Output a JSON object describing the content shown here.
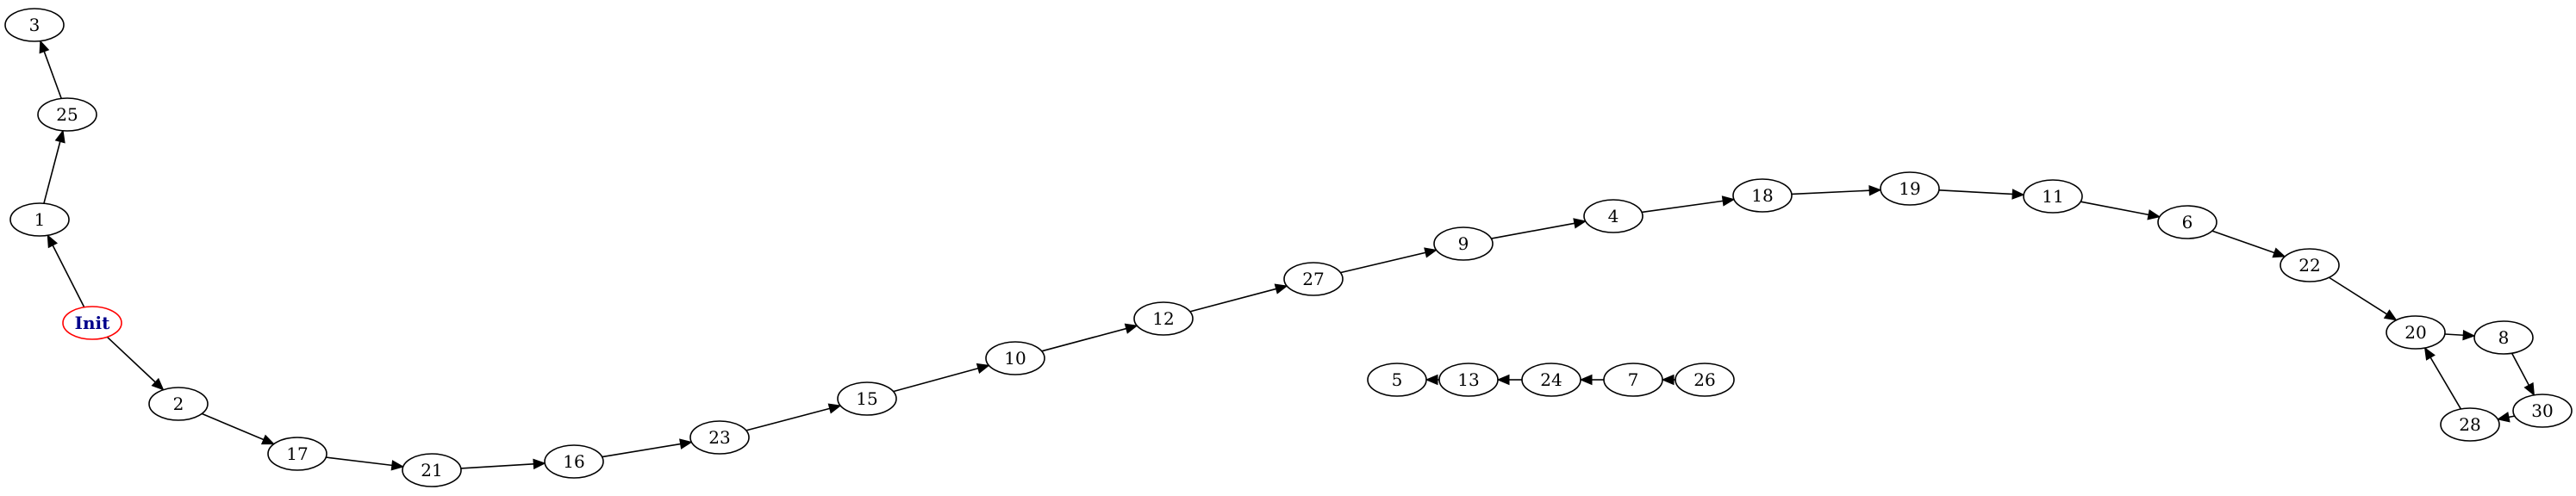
{
  "graph": {
    "colors": {
      "init_stroke": "#ff0000",
      "init_text": "#00008b",
      "node_stroke": "#000000"
    },
    "nodes": [
      {
        "id": "Init",
        "label": "Init",
        "initial": true
      },
      {
        "id": "1",
        "label": "1"
      },
      {
        "id": "25",
        "label": "25"
      },
      {
        "id": "3",
        "label": "3"
      },
      {
        "id": "2",
        "label": "2"
      },
      {
        "id": "17",
        "label": "17"
      },
      {
        "id": "21",
        "label": "21"
      },
      {
        "id": "16",
        "label": "16"
      },
      {
        "id": "23",
        "label": "23"
      },
      {
        "id": "15",
        "label": "15"
      },
      {
        "id": "10",
        "label": "10"
      },
      {
        "id": "12",
        "label": "12"
      },
      {
        "id": "27",
        "label": "27"
      },
      {
        "id": "9",
        "label": "9"
      },
      {
        "id": "4",
        "label": "4"
      },
      {
        "id": "18",
        "label": "18"
      },
      {
        "id": "19",
        "label": "19"
      },
      {
        "id": "11",
        "label": "11"
      },
      {
        "id": "6",
        "label": "6"
      },
      {
        "id": "22",
        "label": "22"
      },
      {
        "id": "20",
        "label": "20"
      },
      {
        "id": "8",
        "label": "8"
      },
      {
        "id": "30",
        "label": "30"
      },
      {
        "id": "28",
        "label": "28"
      },
      {
        "id": "5",
        "label": "5"
      },
      {
        "id": "13",
        "label": "13"
      },
      {
        "id": "24",
        "label": "24"
      },
      {
        "id": "7",
        "label": "7"
      },
      {
        "id": "26",
        "label": "26"
      }
    ],
    "edges": [
      {
        "from": "Init",
        "to": "1"
      },
      {
        "from": "1",
        "to": "25"
      },
      {
        "from": "25",
        "to": "3"
      },
      {
        "from": "Init",
        "to": "2"
      },
      {
        "from": "2",
        "to": "17"
      },
      {
        "from": "17",
        "to": "21"
      },
      {
        "from": "21",
        "to": "16"
      },
      {
        "from": "16",
        "to": "23"
      },
      {
        "from": "23",
        "to": "15"
      },
      {
        "from": "15",
        "to": "10"
      },
      {
        "from": "10",
        "to": "12"
      },
      {
        "from": "12",
        "to": "27"
      },
      {
        "from": "27",
        "to": "9"
      },
      {
        "from": "9",
        "to": "4"
      },
      {
        "from": "4",
        "to": "18"
      },
      {
        "from": "18",
        "to": "19"
      },
      {
        "from": "19",
        "to": "11"
      },
      {
        "from": "11",
        "to": "6"
      },
      {
        "from": "6",
        "to": "22"
      },
      {
        "from": "22",
        "to": "20"
      },
      {
        "from": "20",
        "to": "8"
      },
      {
        "from": "8",
        "to": "30"
      },
      {
        "from": "30",
        "to": "28"
      },
      {
        "from": "28",
        "to": "20"
      },
      {
        "from": "26",
        "to": "7"
      },
      {
        "from": "7",
        "to": "24"
      },
      {
        "from": "24",
        "to": "13"
      },
      {
        "from": "13",
        "to": "5"
      }
    ]
  }
}
